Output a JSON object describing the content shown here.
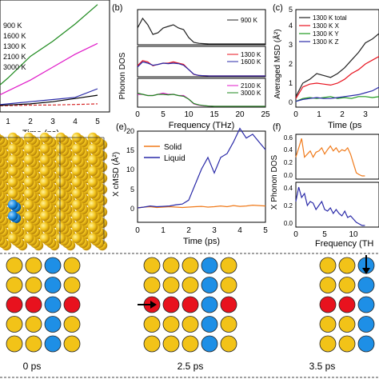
{
  "colors": {
    "gold": "#f2c318",
    "red": "#e8121e",
    "blue": "#1e8fe6",
    "ink": "#000000"
  },
  "panel_a": {
    "legend": [
      "900 K",
      "1600 K",
      "1300 K",
      "2100 K",
      "3000 K"
    ],
    "xlabel": "Time",
    "xunit": "(ps)",
    "xticks": [
      "1",
      "2",
      "3",
      "4",
      "5"
    ],
    "series_colors": [
      "#d62728",
      "#2a2aa8",
      "#000000",
      "#e01ac8",
      "#1e8a1e"
    ]
  },
  "panel_b": {
    "label": "(b)",
    "ylabel": "Phonon DOS",
    "xlabel": "Frequency (THz)",
    "xticks": [
      "0",
      "5",
      "10",
      "15",
      "20",
      "25"
    ],
    "legend_top": [
      "900 K"
    ],
    "legend_mid": [
      "1300 K",
      "1600 K"
    ],
    "legend_bot": [
      "2100 K",
      "3000 K"
    ]
  },
  "panel_c": {
    "label": "(c)",
    "ylabel": "Averaged MSD (Å²)",
    "yticks": [
      "0",
      "1",
      "2",
      "3",
      "4",
      "5"
    ],
    "xticks": [
      "0",
      "1",
      "2",
      "3"
    ],
    "xlabel": "Time",
    "xunit": "(ps",
    "legend": [
      "1300 K total",
      "1300 K X",
      "1300 K Y",
      "1300 K Z"
    ],
    "legend_colors": [
      "#222222",
      "#e8121e",
      "#1e9a1e",
      "#2a2aa8"
    ]
  },
  "panel_e": {
    "label": "(e)",
    "ylabel": "X cMSD (Å²)",
    "xlabel": "Time (ps)",
    "xticks": [
      "0",
      "1",
      "2",
      "3",
      "4",
      "5"
    ],
    "yticks": [
      "0",
      "5",
      "10",
      "15",
      "20"
    ],
    "legend": [
      "Solid",
      "Liquid"
    ],
    "legend_colors": [
      "#f07a1a",
      "#2a2aa8"
    ]
  },
  "panel_f": {
    "label": "(f)",
    "ylabel": "X Phonon DOS",
    "xlabel": "Frequency (TH",
    "xticks": [
      "0",
      "5",
      "10"
    ],
    "yticks_top": [
      "0.0",
      "0.2",
      "0.4",
      "0.6"
    ],
    "yticks_bot": [
      "0.0",
      "0.2",
      "0.4"
    ]
  },
  "lattice_panel": {
    "times": [
      "0 ps",
      "2.5 ps",
      "3.5 ps"
    ],
    "grid_0ps": [
      [
        "gold",
        "gold",
        "blue",
        "gold"
      ],
      [
        "gold",
        "gold",
        "blue",
        "gold"
      ],
      [
        "red",
        "red",
        "blue",
        "red"
      ],
      [
        "gold",
        "gold",
        "blue",
        "gold"
      ],
      [
        "gold",
        "gold",
        "blue",
        "gold"
      ]
    ],
    "grid_2_5ps": [
      [
        "gold",
        "gold",
        "gold",
        "blue",
        "gold"
      ],
      [
        "gold",
        "gold",
        "gold",
        "blue",
        "gold"
      ],
      [
        "red",
        "red",
        "red",
        "blue",
        "red"
      ],
      [
        "gold",
        "gold",
        "gold",
        "blue",
        "gold"
      ],
      [
        "gold",
        "gold",
        "gold",
        "blue",
        "gold"
      ]
    ],
    "grid_3_5ps": [
      [
        "gold",
        "gold",
        "blue"
      ],
      [
        "gold",
        "gold",
        "blue"
      ],
      [
        "red",
        "red",
        "blue"
      ],
      [
        "gold",
        "gold",
        "blue"
      ],
      [
        "gold",
        "gold",
        "blue"
      ]
    ]
  },
  "chart_data": [
    {
      "type": "line",
      "title": "",
      "xlabel": "Time (ps)",
      "ylabel": "",
      "xlim": [
        0,
        5
      ],
      "ylim": [
        0,
        5
      ],
      "x": [
        0,
        1,
        2,
        3,
        4,
        5
      ],
      "series": [
        {
          "name": "900 K",
          "values": [
            0.2,
            0.22,
            0.24,
            0.25,
            0.27,
            0.3
          ]
        },
        {
          "name": "1600 K",
          "values": [
            0.2,
            0.3,
            0.4,
            0.5,
            0.6,
            1.0
          ]
        },
        {
          "name": "1300 K",
          "values": [
            0.2,
            0.25,
            0.3,
            0.4,
            0.55,
            0.7
          ]
        },
        {
          "name": "2100 K",
          "values": [
            0.4,
            0.9,
            1.4,
            2.0,
            2.6,
            3.1
          ]
        },
        {
          "name": "3000 K",
          "values": [
            0.6,
            1.5,
            2.5,
            3.2,
            4.0,
            4.9
          ]
        }
      ]
    },
    {
      "type": "line",
      "title": "",
      "xlabel": "Frequency (THz)",
      "ylabel": "Phonon DOS",
      "xlim": [
        0,
        25
      ],
      "x": [
        0,
        1,
        2,
        3,
        4,
        5,
        6,
        7,
        8,
        9,
        10,
        11,
        12,
        13,
        14,
        15,
        16,
        17,
        18,
        19,
        20,
        21,
        22,
        23,
        24,
        25
      ],
      "series": [
        {
          "name": "900 K",
          "values": [
            0.5,
            0.8,
            0.6,
            0.3,
            0.35,
            0.5,
            0.55,
            0.6,
            0.5,
            0.45,
            0.2,
            0.05,
            0.02,
            0.01,
            0.0,
            0.0,
            0.0,
            0.0,
            0.0,
            0.0,
            0.0,
            0.0,
            0.0,
            0.0,
            0.0,
            0.0
          ]
        },
        {
          "name": "1300 K",
          "values": [
            0.4,
            0.6,
            0.55,
            0.4,
            0.45,
            0.5,
            0.5,
            0.55,
            0.5,
            0.45,
            0.25,
            0.06,
            0.02,
            0.01,
            0.0,
            0.0,
            0.0,
            0.0,
            0.0,
            0.0,
            0.0,
            0.0,
            0.0,
            0.0,
            0.0,
            0.0
          ]
        },
        {
          "name": "1600 K",
          "values": [
            0.35,
            0.55,
            0.5,
            0.42,
            0.45,
            0.5,
            0.48,
            0.5,
            0.48,
            0.42,
            0.25,
            0.07,
            0.02,
            0.01,
            0.0,
            0.0,
            0.0,
            0.0,
            0.0,
            0.0,
            0.0,
            0.0,
            0.0,
            0.0,
            0.0,
            0.0
          ]
        },
        {
          "name": "2100 K",
          "values": [
            0.5,
            0.5,
            0.45,
            0.45,
            0.5,
            0.55,
            0.5,
            0.5,
            0.45,
            0.45,
            0.3,
            0.1,
            0.05,
            0.02,
            0.01,
            0.0,
            0.0,
            0.0,
            0.0,
            0.0,
            0.0,
            0.0,
            0.0,
            0.0,
            0.0,
            0.0
          ]
        },
        {
          "name": "3000 K",
          "values": [
            0.55,
            0.5,
            0.45,
            0.45,
            0.5,
            0.5,
            0.48,
            0.5,
            0.45,
            0.42,
            0.3,
            0.12,
            0.06,
            0.03,
            0.01,
            0.0,
            0.0,
            0.0,
            0.0,
            0.0,
            0.0,
            0.0,
            0.0,
            0.0,
            0.0,
            0.0
          ]
        }
      ]
    },
    {
      "type": "line",
      "title": "",
      "xlabel": "Time (ps",
      "ylabel": "Averaged MSD (Å²)",
      "xlim": [
        0,
        3.6
      ],
      "ylim": [
        0,
        5
      ],
      "x": [
        0,
        0.3,
        0.6,
        0.9,
        1.2,
        1.5,
        1.8,
        2.1,
        2.4,
        2.7,
        3.0,
        3.3,
        3.6
      ],
      "series": [
        {
          "name": "1300 K total",
          "values": [
            0.3,
            1.0,
            1.2,
            1.5,
            1.4,
            1.3,
            1.5,
            1.8,
            2.2,
            2.6,
            3.1,
            3.3,
            3.6
          ]
        },
        {
          "name": "1300 K X",
          "values": [
            0.2,
            0.8,
            0.95,
            1.0,
            0.95,
            0.9,
            1.0,
            1.2,
            1.5,
            1.7,
            2.0,
            2.2,
            2.4
          ]
        },
        {
          "name": "1300 K Y",
          "values": [
            0.05,
            0.2,
            0.25,
            0.2,
            0.25,
            0.3,
            0.2,
            0.25,
            0.2,
            0.3,
            0.3,
            0.25,
            0.3
          ]
        },
        {
          "name": "1300 K Z",
          "values": [
            0.05,
            0.15,
            0.2,
            0.25,
            0.2,
            0.2,
            0.25,
            0.3,
            0.35,
            0.4,
            0.5,
            0.6,
            0.8
          ]
        }
      ]
    },
    {
      "type": "line",
      "title": "",
      "xlabel": "Time (ps)",
      "ylabel": "X cMSD (Å²)",
      "xlim": [
        0,
        5
      ],
      "ylim": [
        -2,
        22
      ],
      "x": [
        0,
        0.25,
        0.5,
        0.75,
        1.0,
        1.25,
        1.5,
        1.75,
        2.0,
        2.25,
        2.5,
        2.75,
        3.0,
        3.25,
        3.5,
        3.75,
        4.0,
        4.25,
        4.5,
        4.75,
        5.0
      ],
      "series": [
        {
          "name": "Solid",
          "values": [
            0,
            0.2,
            0.3,
            0.1,
            0.2,
            0.3,
            0.2,
            0.1,
            0.2,
            0.3,
            0.4,
            0.2,
            0.3,
            0.5,
            0.3,
            0.6,
            0.4,
            0.5,
            0.7,
            0.6,
            0.5
          ]
        },
        {
          "name": "Liquid",
          "values": [
            0,
            0.2,
            0.5,
            0.3,
            0.4,
            0.5,
            0.8,
            1.0,
            2.0,
            6.0,
            10.0,
            13.0,
            9.0,
            13.0,
            14.0,
            17.0,
            20.5,
            18.0,
            19.0,
            17.0,
            15.0
          ]
        }
      ]
    },
    {
      "type": "line",
      "title": "",
      "xlabel": "Frequency (TH",
      "ylabel": "X Phonon DOS",
      "xlim": [
        0,
        12
      ],
      "x": [
        0,
        0.5,
        1,
        1.5,
        2,
        2.5,
        3,
        3.5,
        4,
        4.5,
        5,
        5.5,
        6,
        6.5,
        7,
        7.5,
        8,
        8.5,
        9,
        9.5,
        10,
        10.5,
        11,
        11.5,
        12
      ],
      "series": [
        {
          "name": "",
          "values": [
            0.3,
            0.45,
            0.6,
            0.3,
            0.35,
            0.4,
            0.3,
            0.38,
            0.4,
            0.45,
            0.35,
            0.42,
            0.48,
            0.4,
            0.45,
            0.38,
            0.42,
            0.4,
            0.45,
            0.35,
            0.2,
            0.05,
            0.02,
            0.0,
            0.0
          ]
        },
        {
          "name": "",
          "values": [
            0.3,
            0.48,
            0.35,
            0.4,
            0.25,
            0.3,
            0.28,
            0.2,
            0.25,
            0.3,
            0.2,
            0.18,
            0.22,
            0.15,
            0.2,
            0.15,
            0.12,
            0.18,
            0.1,
            0.12,
            0.08,
            0.04,
            0.02,
            0.0,
            0.0
          ]
        }
      ]
    }
  ]
}
